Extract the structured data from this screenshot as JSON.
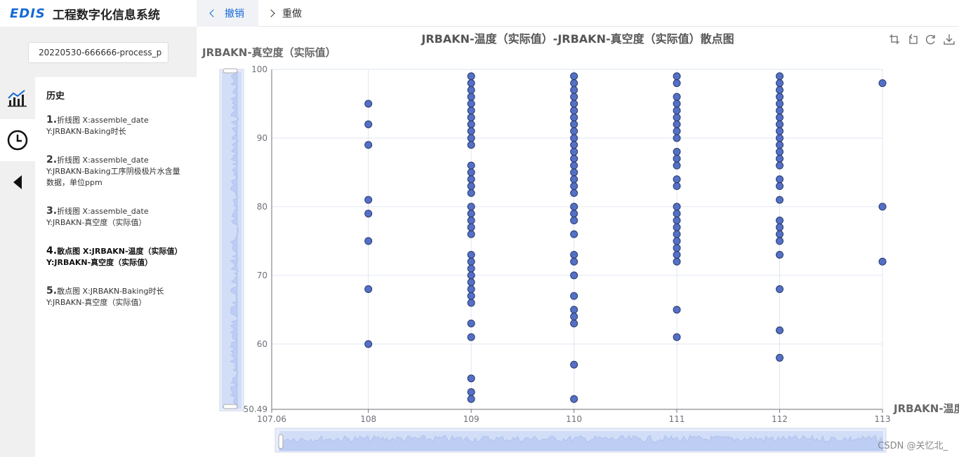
{
  "header": {
    "logo_text": "EDIS",
    "app_title": "工程数字化信息系统",
    "undo_label": "撤销",
    "redo_label": "重做"
  },
  "search": {
    "value": "20220530-666666-process_p"
  },
  "history": {
    "title": "历史",
    "items": [
      {
        "num": "1.",
        "text": "折线图   X:assemble_date Y:JRBAKN-Baking时长"
      },
      {
        "num": "2.",
        "text": "折线图   X:assemble_date Y:JRBAKN-Baking工序阴极极片水含量数据，单位ppm"
      },
      {
        "num": "3.",
        "text": "折线图   X:assemble_date Y:JRBAKN-真空度（实际值）"
      },
      {
        "num": "4.",
        "text": "散点图   X:JRBAKN-温度（实际值）   Y:JRBAKN-真空度（实际值）"
      },
      {
        "num": "5.",
        "text": "散点图   X:JRBAKN-Baking时长 Y:JRBAKN-真空度（实际值）"
      }
    ]
  },
  "icons": {
    "rail": [
      "chart-icon",
      "history-clock-icon",
      "collapse-arrow-icon"
    ],
    "toolbox": [
      "zoom-select-icon",
      "zoom-reset-icon",
      "refresh-icon",
      "download-icon"
    ]
  },
  "footer": {
    "watermark_credit": "CSDN @关忆北_"
  },
  "colors": {
    "accent": "#1769d6",
    "point_fill": "#5470c6",
    "point_stroke": "#2a3a6e"
  },
  "chart_data": {
    "type": "scatter",
    "title": "JRBAKN-温度（实际值）-JRBAKN-真空度（实际值）散点图",
    "xlabel": "JRBAKN-温度",
    "ylabel": "JRBAKN-真空度（实际值）",
    "xlim": [
      107.06,
      113
    ],
    "ylim": [
      50.49,
      100
    ],
    "x_ticks": [
      "107.06",
      "108",
      "109",
      "110",
      "111",
      "112",
      "113"
    ],
    "y_ticks": [
      "50.49",
      "60",
      "70",
      "80",
      "90",
      "100"
    ],
    "grid": true,
    "series": [
      {
        "points": [
          [
            108,
            95
          ],
          [
            108,
            92
          ],
          [
            108,
            89
          ],
          [
            108,
            81
          ],
          [
            108,
            79
          ],
          [
            108,
            75
          ],
          [
            108,
            68
          ],
          [
            108,
            60
          ],
          [
            109,
            99
          ],
          [
            109,
            98
          ],
          [
            109,
            97
          ],
          [
            109,
            96
          ],
          [
            109,
            95
          ],
          [
            109,
            94
          ],
          [
            109,
            93
          ],
          [
            109,
            92
          ],
          [
            109,
            91
          ],
          [
            109,
            90
          ],
          [
            109,
            89
          ],
          [
            109,
            86
          ],
          [
            109,
            85
          ],
          [
            109,
            84
          ],
          [
            109,
            83
          ],
          [
            109,
            82
          ],
          [
            109,
            80
          ],
          [
            109,
            79
          ],
          [
            109,
            78
          ],
          [
            109,
            77
          ],
          [
            109,
            76
          ],
          [
            109,
            73
          ],
          [
            109,
            72
          ],
          [
            109,
            71
          ],
          [
            109,
            70
          ],
          [
            109,
            69
          ],
          [
            109,
            68
          ],
          [
            109,
            67
          ],
          [
            109,
            66
          ],
          [
            109,
            63
          ],
          [
            109,
            61
          ],
          [
            109,
            55
          ],
          [
            109,
            53
          ],
          [
            109,
            52
          ],
          [
            110,
            99
          ],
          [
            110,
            98
          ],
          [
            110,
            97
          ],
          [
            110,
            96
          ],
          [
            110,
            95
          ],
          [
            110,
            94
          ],
          [
            110,
            93
          ],
          [
            110,
            92
          ],
          [
            110,
            91
          ],
          [
            110,
            90
          ],
          [
            110,
            89
          ],
          [
            110,
            88
          ],
          [
            110,
            87
          ],
          [
            110,
            86
          ],
          [
            110,
            85
          ],
          [
            110,
            84
          ],
          [
            110,
            83
          ],
          [
            110,
            82
          ],
          [
            110,
            80
          ],
          [
            110,
            79
          ],
          [
            110,
            78
          ],
          [
            110,
            76
          ],
          [
            110,
            73
          ],
          [
            110,
            72
          ],
          [
            110,
            70
          ],
          [
            110,
            67
          ],
          [
            110,
            65
          ],
          [
            110,
            64
          ],
          [
            110,
            63
          ],
          [
            110,
            57
          ],
          [
            110,
            52
          ],
          [
            111,
            99
          ],
          [
            111,
            98
          ],
          [
            111,
            96
          ],
          [
            111,
            95
          ],
          [
            111,
            94
          ],
          [
            111,
            93
          ],
          [
            111,
            92
          ],
          [
            111,
            91
          ],
          [
            111,
            90
          ],
          [
            111,
            88
          ],
          [
            111,
            87
          ],
          [
            111,
            86
          ],
          [
            111,
            84
          ],
          [
            111,
            83
          ],
          [
            111,
            80
          ],
          [
            111,
            79
          ],
          [
            111,
            78
          ],
          [
            111,
            77
          ],
          [
            111,
            76
          ],
          [
            111,
            75
          ],
          [
            111,
            74
          ],
          [
            111,
            73
          ],
          [
            111,
            72
          ],
          [
            111,
            65
          ],
          [
            111,
            61
          ],
          [
            112,
            99
          ],
          [
            112,
            98
          ],
          [
            112,
            97
          ],
          [
            112,
            96
          ],
          [
            112,
            95
          ],
          [
            112,
            94
          ],
          [
            112,
            93
          ],
          [
            112,
            92
          ],
          [
            112,
            91
          ],
          [
            112,
            90
          ],
          [
            112,
            89
          ],
          [
            112,
            88
          ],
          [
            112,
            87
          ],
          [
            112,
            86
          ],
          [
            112,
            84
          ],
          [
            112,
            83
          ],
          [
            112,
            81
          ],
          [
            112,
            78
          ],
          [
            112,
            77
          ],
          [
            112,
            76
          ],
          [
            112,
            75
          ],
          [
            112,
            73
          ],
          [
            112,
            68
          ],
          [
            112,
            62
          ],
          [
            112,
            58
          ],
          [
            113,
            98
          ],
          [
            113,
            80
          ],
          [
            113,
            72
          ]
        ]
      }
    ]
  }
}
